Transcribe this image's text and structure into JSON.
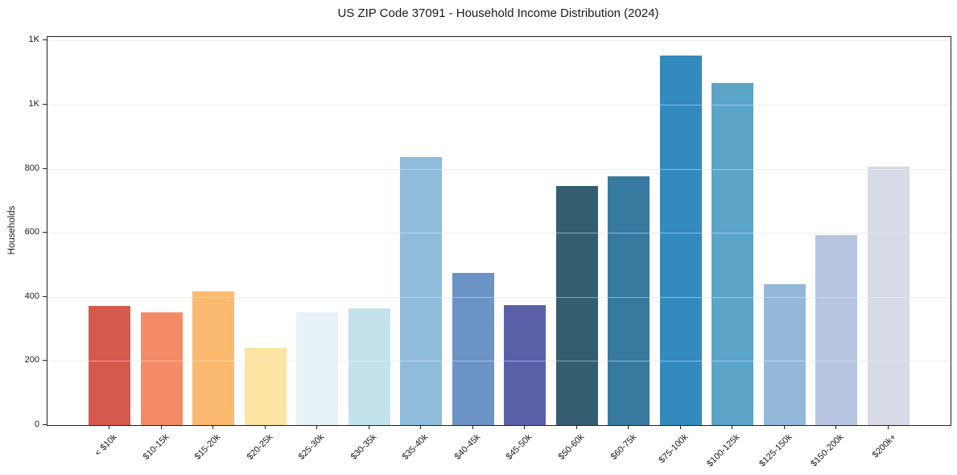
{
  "chart_data": {
    "type": "bar",
    "title": "US ZIP Code 37091 - Household Income Distribution (2024)",
    "xlabel": "",
    "ylabel": "Households",
    "categories": [
      "< $10k",
      "$10-15k",
      "$15-20k",
      "$20-25k",
      "$25-30k",
      "$30-35k",
      "$35-40k",
      "$40-45k",
      "$45-50k",
      "$50-60k",
      "$60-75k",
      "$75-100k",
      "$100-125k",
      "$125-150k",
      "$150-200k",
      "$200k+"
    ],
    "values": [
      372,
      352,
      418,
      240,
      351,
      364,
      836,
      475,
      374,
      745,
      776,
      1152,
      1069,
      440,
      592,
      806
    ],
    "bar_colors": [
      "#d6594e",
      "#f58a67",
      "#fbba70",
      "#fce3a2",
      "#e7f2f6",
      "#c3e2eb",
      "#90bcdc",
      "#6b93c5",
      "#5a60a8",
      "#345e70",
      "#37799f",
      "#338bbd",
      "#5ca5c8",
      "#93b8da",
      "#b7c5e1",
      "#d8dae8"
    ],
    "ylim": [
      0,
      1211
    ],
    "yticks": [
      {
        "value": 0,
        "label": "0"
      },
      {
        "value": 200,
        "label": "200"
      },
      {
        "value": 400,
        "label": "400"
      },
      {
        "value": 600,
        "label": "600"
      },
      {
        "value": 800,
        "label": "800"
      },
      {
        "value": 1000,
        "label": "1K"
      },
      {
        "value": 1200,
        "label": "1K"
      }
    ],
    "grid": "horizontal",
    "legend": "none",
    "x_tick_rotation_deg": 45
  },
  "colors": {
    "background": "#ffffff",
    "spine": "#222222",
    "grid": "#e6e9f0",
    "text": "#1a1a1a"
  }
}
